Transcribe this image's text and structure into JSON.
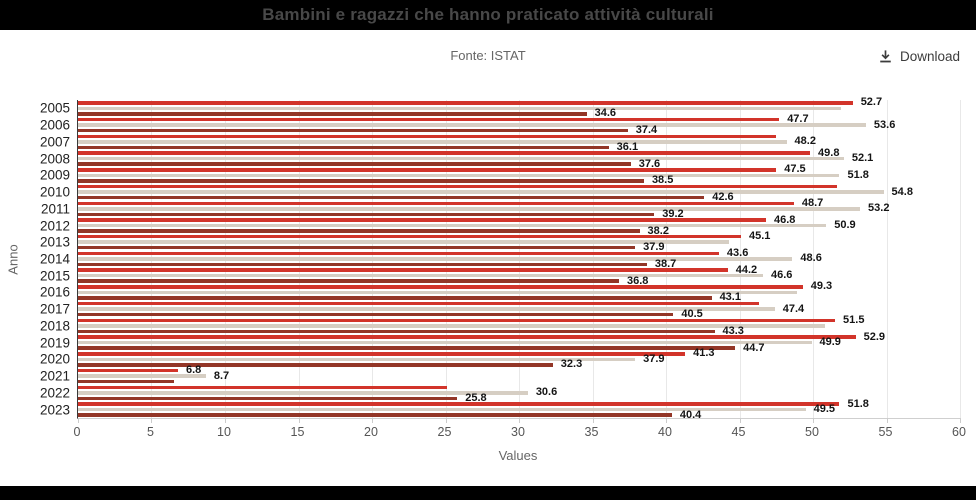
{
  "toolbar": {
    "download_label": "Download"
  },
  "chart_data": {
    "type": "bar",
    "orientation": "horizontal",
    "title": "Bambini e ragazzi che hanno praticato attività culturali",
    "subtitle": "Fonte: ISTAT",
    "xlabel": "Values",
    "ylabel": "Anno",
    "xlim": [
      0,
      60
    ],
    "xticks": [
      0,
      5,
      10,
      15,
      20,
      25,
      30,
      35,
      40,
      45,
      50,
      55,
      60
    ],
    "grid": true,
    "legend": false,
    "categories": [
      "2005",
      "2006",
      "2007",
      "2008",
      "2009",
      "2010",
      "2011",
      "2012",
      "2013",
      "2014",
      "2015",
      "2016",
      "2017",
      "2018",
      "2019",
      "2020",
      "2021",
      "2022",
      "2023"
    ],
    "series": [
      {
        "name": "red",
        "color": "#d2342a",
        "values": [
          52.7,
          47.7,
          47.5,
          49.8,
          47.5,
          51.6,
          48.7,
          46.8,
          45.1,
          43.6,
          44.2,
          49.3,
          46.3,
          51.5,
          52.9,
          41.3,
          6.8,
          25.1,
          51.8
        ],
        "labels": [
          "52.7",
          "47.7",
          null,
          "49.8",
          "47.5",
          null,
          "48.7",
          "46.8",
          "45.1",
          "43.6",
          "44.2",
          "49.3",
          null,
          "51.5",
          "52.9",
          "41.3",
          "6.8",
          null,
          "51.8"
        ]
      },
      {
        "name": "beige",
        "color": "#d6cec3",
        "values": [
          51.9,
          53.6,
          48.2,
          52.1,
          51.8,
          54.8,
          53.2,
          50.9,
          44.3,
          48.6,
          46.6,
          48.9,
          47.4,
          50.8,
          49.9,
          37.9,
          8.7,
          30.6,
          49.5
        ],
        "labels": [
          null,
          "53.6",
          "48.2",
          "52.1",
          "51.8",
          "54.8",
          "53.2",
          "50.9",
          null,
          "48.6",
          "46.6",
          null,
          "47.4",
          null,
          "49.9",
          "37.9",
          "8.7",
          "30.6",
          "49.5"
        ]
      },
      {
        "name": "maroon",
        "color": "#933627",
        "values": [
          34.6,
          37.4,
          36.1,
          37.6,
          38.5,
          42.6,
          39.2,
          38.2,
          37.9,
          38.7,
          36.8,
          43.1,
          40.5,
          43.3,
          44.7,
          32.3,
          6.5,
          25.8,
          40.4
        ],
        "labels": [
          "34.6",
          "37.4",
          "36.1",
          "37.6",
          "38.5",
          "42.6",
          "39.2",
          "38.2",
          "37.9",
          "38.7",
          "36.8",
          "43.1",
          "40.5",
          "43.3",
          "44.7",
          "32.3",
          null,
          "25.8",
          "40.4"
        ]
      }
    ]
  }
}
